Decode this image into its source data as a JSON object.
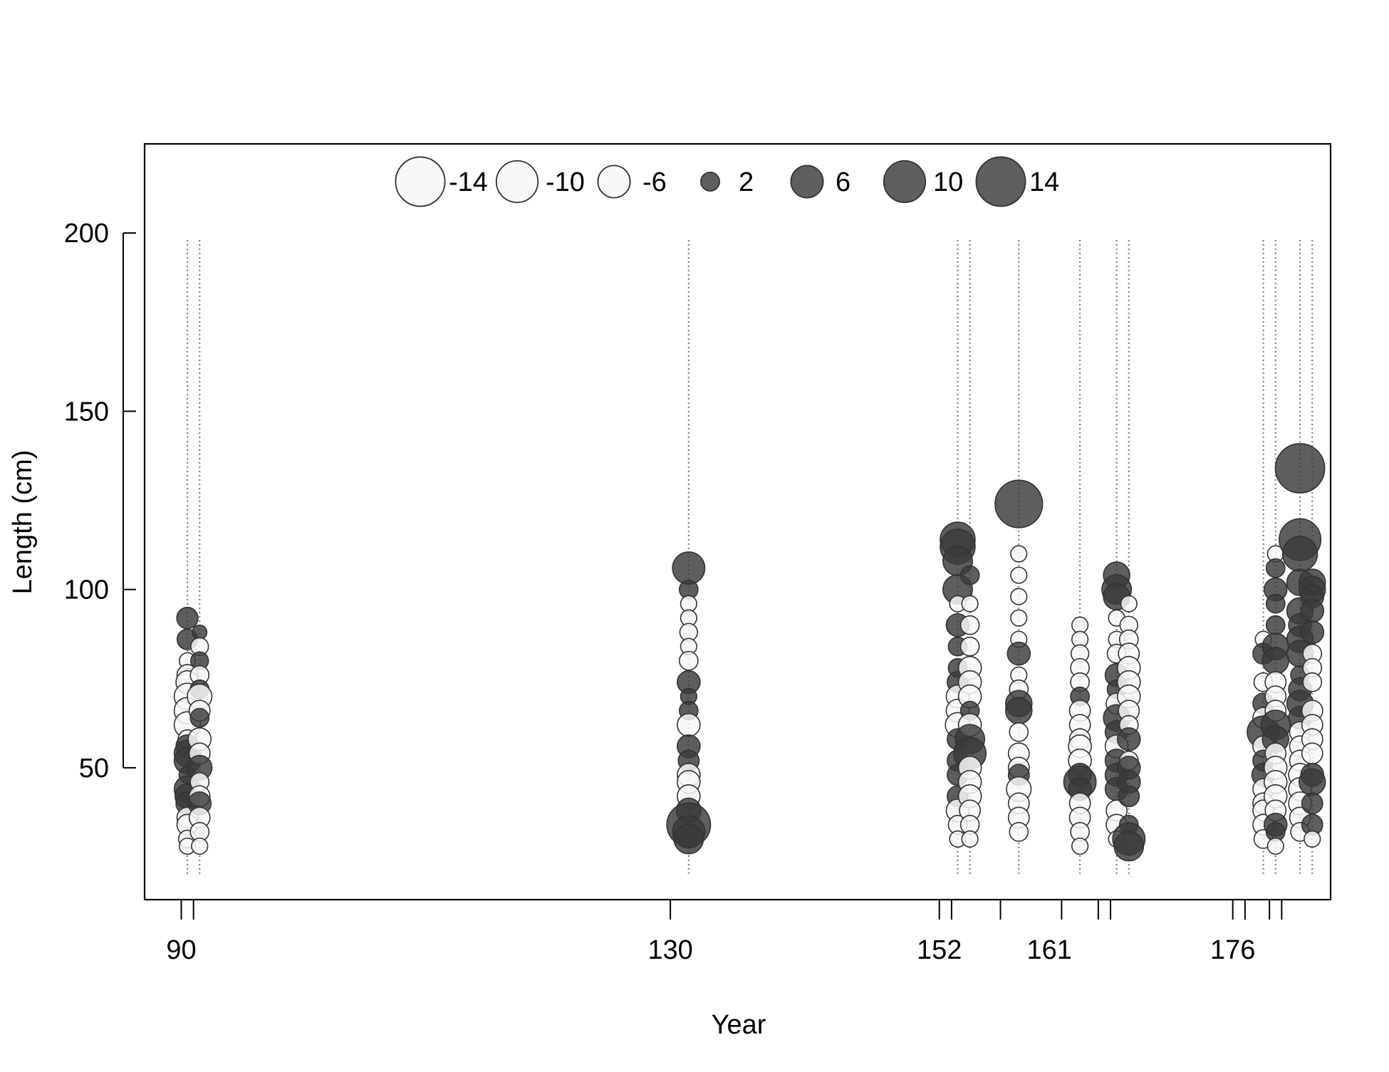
{
  "chart_data": {
    "type": "scatter",
    "subtype": "bubble",
    "title": "",
    "xlabel": "Year",
    "ylabel": "Length (cm)",
    "xlim": [
      87,
      184
    ],
    "ylim": [
      13,
      225
    ],
    "y_ticks": [
      50,
      100,
      150,
      200
    ],
    "x_tick_positions": [
      90,
      91,
      130,
      152,
      153,
      157,
      162,
      165,
      166,
      176,
      177,
      179,
      180
    ],
    "x_tick_labels": [
      {
        "x": 90,
        "label": "90"
      },
      {
        "x": 130,
        "label": "130"
      },
      {
        "x": 152,
        "label": "152"
      },
      {
        "x": 161,
        "label": "161"
      },
      {
        "x": 176,
        "label": "176"
      }
    ],
    "grid": false,
    "legend_placement": "top-center",
    "legend": [
      {
        "value": -14,
        "label": "-14"
      },
      {
        "value": -10,
        "label": "-10"
      },
      {
        "value": -6,
        "label": "-6"
      },
      {
        "value": 2,
        "label": "2"
      },
      {
        "value": 6,
        "label": "6"
      },
      {
        "value": 10,
        "label": "10"
      },
      {
        "value": 14,
        "label": "14"
      }
    ],
    "colors": {
      "positive_fill": "#3a3a3a",
      "negative_fill": "#f7f7f7",
      "stroke": "#333333"
    },
    "bin_range": [
      20,
      198
    ],
    "years": [
      90.5,
      91.5,
      131.5,
      153.5,
      154.5,
      158.5,
      163.5,
      166.5,
      167.5,
      178.5,
      179.5,
      181.5,
      182.5
    ],
    "points": [
      {
        "x": 90.5,
        "y": 92,
        "v": 2.6
      },
      {
        "x": 90.5,
        "y": 86,
        "v": 2.4
      },
      {
        "x": 90.5,
        "y": 80,
        "v": -1.5
      },
      {
        "x": 90.5,
        "y": 76,
        "v": -2.5
      },
      {
        "x": 90.5,
        "y": 74,
        "v": -3
      },
      {
        "x": 90.5,
        "y": 70,
        "v": -4
      },
      {
        "x": 90.5,
        "y": 66,
        "v": -4
      },
      {
        "x": 90.5,
        "y": 62,
        "v": -4
      },
      {
        "x": 90.5,
        "y": 58,
        "v": -2
      },
      {
        "x": 90.5,
        "y": 56,
        "v": 3
      },
      {
        "x": 90.5,
        "y": 54,
        "v": 4
      },
      {
        "x": 90.5,
        "y": 52,
        "v": 4
      },
      {
        "x": 90.5,
        "y": 48,
        "v": 1.6
      },
      {
        "x": 90.5,
        "y": 44,
        "v": 4
      },
      {
        "x": 90.5,
        "y": 42,
        "v": 3.5
      },
      {
        "x": 90.5,
        "y": 40,
        "v": 3
      },
      {
        "x": 90.5,
        "y": 36,
        "v": -2.5
      },
      {
        "x": 90.5,
        "y": 34,
        "v": -2.5
      },
      {
        "x": 90.5,
        "y": 30,
        "v": -1.8
      },
      {
        "x": 90.5,
        "y": 28,
        "v": -1.5
      },
      {
        "x": 91.5,
        "y": 88,
        "v": 1.2
      },
      {
        "x": 91.5,
        "y": 84,
        "v": -1.8
      },
      {
        "x": 91.5,
        "y": 80,
        "v": 1.8
      },
      {
        "x": 91.5,
        "y": 76,
        "v": -2
      },
      {
        "x": 91.5,
        "y": 72,
        "v": 2
      },
      {
        "x": 91.5,
        "y": 70,
        "v": -3.5
      },
      {
        "x": 91.5,
        "y": 66,
        "v": -2.5
      },
      {
        "x": 91.5,
        "y": 64,
        "v": 2
      },
      {
        "x": 91.5,
        "y": 58,
        "v": -3
      },
      {
        "x": 91.5,
        "y": 54,
        "v": -2.5
      },
      {
        "x": 91.5,
        "y": 50,
        "v": 3.5
      },
      {
        "x": 91.5,
        "y": 46,
        "v": -2
      },
      {
        "x": 91.5,
        "y": 42,
        "v": -2.5
      },
      {
        "x": 91.5,
        "y": 40,
        "v": 3
      },
      {
        "x": 91.5,
        "y": 36,
        "v": -2.5
      },
      {
        "x": 91.5,
        "y": 32,
        "v": -2
      },
      {
        "x": 91.5,
        "y": 28,
        "v": -1.5
      },
      {
        "x": 131.5,
        "y": 106,
        "v": 6
      },
      {
        "x": 131.5,
        "y": 100,
        "v": 2
      },
      {
        "x": 131.5,
        "y": 96,
        "v": -1.5
      },
      {
        "x": 131.5,
        "y": 92,
        "v": -1.5
      },
      {
        "x": 131.5,
        "y": 88,
        "v": -1.8
      },
      {
        "x": 131.5,
        "y": 84,
        "v": -1.5
      },
      {
        "x": 131.5,
        "y": 80,
        "v": -2
      },
      {
        "x": 131.5,
        "y": 74,
        "v": 3
      },
      {
        "x": 131.5,
        "y": 70,
        "v": 1.5
      },
      {
        "x": 131.5,
        "y": 66,
        "v": 2
      },
      {
        "x": 131.5,
        "y": 62,
        "v": -3
      },
      {
        "x": 131.5,
        "y": 56,
        "v": 3
      },
      {
        "x": 131.5,
        "y": 52,
        "v": 2.5
      },
      {
        "x": 131.5,
        "y": 48,
        "v": -3
      },
      {
        "x": 131.5,
        "y": 46,
        "v": -3
      },
      {
        "x": 131.5,
        "y": 42,
        "v": -3
      },
      {
        "x": 131.5,
        "y": 38,
        "v": 3.5
      },
      {
        "x": 131.5,
        "y": 34,
        "v": 11
      },
      {
        "x": 131.5,
        "y": 32,
        "v": 6
      },
      {
        "x": 131.5,
        "y": 30,
        "v": 5
      },
      {
        "x": 153.5,
        "y": 114,
        "v": 7
      },
      {
        "x": 153.5,
        "y": 112,
        "v": 7
      },
      {
        "x": 153.5,
        "y": 108,
        "v": 5
      },
      {
        "x": 153.5,
        "y": 100,
        "v": 5
      },
      {
        "x": 153.5,
        "y": 96,
        "v": -1.5
      },
      {
        "x": 153.5,
        "y": 90,
        "v": 3
      },
      {
        "x": 153.5,
        "y": 84,
        "v": 2
      },
      {
        "x": 153.5,
        "y": 78,
        "v": 2
      },
      {
        "x": 153.5,
        "y": 74,
        "v": 2.5
      },
      {
        "x": 153.5,
        "y": 70,
        "v": -3
      },
      {
        "x": 153.5,
        "y": 66,
        "v": -3
      },
      {
        "x": 153.5,
        "y": 62,
        "v": -3.5
      },
      {
        "x": 153.5,
        "y": 58,
        "v": 2.5
      },
      {
        "x": 153.5,
        "y": 52,
        "v": 2.5
      },
      {
        "x": 153.5,
        "y": 48,
        "v": 2.5
      },
      {
        "x": 153.5,
        "y": 42,
        "v": 2.5
      },
      {
        "x": 153.5,
        "y": 38,
        "v": -3
      },
      {
        "x": 153.5,
        "y": 34,
        "v": -2
      },
      {
        "x": 153.5,
        "y": 30,
        "v": -1.5
      },
      {
        "x": 154.5,
        "y": 104,
        "v": 2
      },
      {
        "x": 154.5,
        "y": 96,
        "v": -1.5
      },
      {
        "x": 154.5,
        "y": 90,
        "v": -2
      },
      {
        "x": 154.5,
        "y": 84,
        "v": -2
      },
      {
        "x": 154.5,
        "y": 78,
        "v": -3
      },
      {
        "x": 154.5,
        "y": 74,
        "v": -3
      },
      {
        "x": 154.5,
        "y": 70,
        "v": -3
      },
      {
        "x": 154.5,
        "y": 66,
        "v": 2
      },
      {
        "x": 154.5,
        "y": 62,
        "v": -3
      },
      {
        "x": 154.5,
        "y": 58,
        "v": 5
      },
      {
        "x": 154.5,
        "y": 54,
        "v": 6
      },
      {
        "x": 154.5,
        "y": 50,
        "v": -3
      },
      {
        "x": 154.5,
        "y": 46,
        "v": -3
      },
      {
        "x": 154.5,
        "y": 42,
        "v": -3
      },
      {
        "x": 154.5,
        "y": 38,
        "v": -2.5
      },
      {
        "x": 154.5,
        "y": 34,
        "v": -2
      },
      {
        "x": 154.5,
        "y": 30,
        "v": -1.5
      },
      {
        "x": 158.5,
        "y": 124,
        "v": 13
      },
      {
        "x": 158.5,
        "y": 110,
        "v": -1.5
      },
      {
        "x": 158.5,
        "y": 104,
        "v": -1.5
      },
      {
        "x": 158.5,
        "y": 98,
        "v": -1.5
      },
      {
        "x": 158.5,
        "y": 92,
        "v": -1.5
      },
      {
        "x": 158.5,
        "y": 86,
        "v": -1.5
      },
      {
        "x": 158.5,
        "y": 82,
        "v": 3
      },
      {
        "x": 158.5,
        "y": 76,
        "v": -1.5
      },
      {
        "x": 158.5,
        "y": 72,
        "v": -2
      },
      {
        "x": 158.5,
        "y": 68,
        "v": 4
      },
      {
        "x": 158.5,
        "y": 66,
        "v": 4
      },
      {
        "x": 158.5,
        "y": 60,
        "v": -2
      },
      {
        "x": 158.5,
        "y": 54,
        "v": -2.5
      },
      {
        "x": 158.5,
        "y": 50,
        "v": -2.5
      },
      {
        "x": 158.5,
        "y": 48,
        "v": 2.5
      },
      {
        "x": 158.5,
        "y": 44,
        "v": -3.5
      },
      {
        "x": 158.5,
        "y": 40,
        "v": -2.5
      },
      {
        "x": 158.5,
        "y": 36,
        "v": -2.5
      },
      {
        "x": 158.5,
        "y": 32,
        "v": -2
      },
      {
        "x": 163.5,
        "y": 90,
        "v": -1.5
      },
      {
        "x": 163.5,
        "y": 86,
        "v": -1.5
      },
      {
        "x": 163.5,
        "y": 82,
        "v": -1.8
      },
      {
        "x": 163.5,
        "y": 78,
        "v": -2
      },
      {
        "x": 163.5,
        "y": 74,
        "v": -2
      },
      {
        "x": 163.5,
        "y": 70,
        "v": 2
      },
      {
        "x": 163.5,
        "y": 66,
        "v": -2.5
      },
      {
        "x": 163.5,
        "y": 62,
        "v": -2.5
      },
      {
        "x": 163.5,
        "y": 58,
        "v": -2.5
      },
      {
        "x": 163.5,
        "y": 56,
        "v": -3
      },
      {
        "x": 163.5,
        "y": 52,
        "v": -3
      },
      {
        "x": 163.5,
        "y": 48,
        "v": 3
      },
      {
        "x": 163.5,
        "y": 46,
        "v": 6
      },
      {
        "x": 163.5,
        "y": 44,
        "v": 3
      },
      {
        "x": 163.5,
        "y": 40,
        "v": -2.5
      },
      {
        "x": 163.5,
        "y": 36,
        "v": -2.5
      },
      {
        "x": 163.5,
        "y": 32,
        "v": -2
      },
      {
        "x": 163.5,
        "y": 28,
        "v": -1.5
      },
      {
        "x": 166.5,
        "y": 104,
        "v": 4
      },
      {
        "x": 166.5,
        "y": 100,
        "v": 5
      },
      {
        "x": 166.5,
        "y": 98,
        "v": 4
      },
      {
        "x": 166.5,
        "y": 92,
        "v": -1.5
      },
      {
        "x": 166.5,
        "y": 86,
        "v": -1.5
      },
      {
        "x": 166.5,
        "y": 82,
        "v": -2
      },
      {
        "x": 166.5,
        "y": 76,
        "v": 3
      },
      {
        "x": 166.5,
        "y": 72,
        "v": 2
      },
      {
        "x": 166.5,
        "y": 68,
        "v": -2.5
      },
      {
        "x": 166.5,
        "y": 64,
        "v": 4
      },
      {
        "x": 166.5,
        "y": 60,
        "v": 3
      },
      {
        "x": 166.5,
        "y": 56,
        "v": -3
      },
      {
        "x": 166.5,
        "y": 52,
        "v": 3
      },
      {
        "x": 166.5,
        "y": 48,
        "v": 3
      },
      {
        "x": 166.5,
        "y": 44,
        "v": 3
      },
      {
        "x": 166.5,
        "y": 38,
        "v": -2.5
      },
      {
        "x": 166.5,
        "y": 34,
        "v": -2.5
      },
      {
        "x": 166.5,
        "y": 30,
        "v": -1.5
      },
      {
        "x": 167.5,
        "y": 96,
        "v": -1.5
      },
      {
        "x": 167.5,
        "y": 90,
        "v": -1.8
      },
      {
        "x": 167.5,
        "y": 86,
        "v": -2
      },
      {
        "x": 167.5,
        "y": 82,
        "v": -2.5
      },
      {
        "x": 167.5,
        "y": 78,
        "v": -3
      },
      {
        "x": 167.5,
        "y": 74,
        "v": -3
      },
      {
        "x": 167.5,
        "y": 70,
        "v": -3
      },
      {
        "x": 167.5,
        "y": 66,
        "v": -2.5
      },
      {
        "x": 167.5,
        "y": 62,
        "v": -2
      },
      {
        "x": 167.5,
        "y": 58,
        "v": 3
      },
      {
        "x": 167.5,
        "y": 52,
        "v": -2
      },
      {
        "x": 167.5,
        "y": 50,
        "v": 3
      },
      {
        "x": 167.5,
        "y": 46,
        "v": 3
      },
      {
        "x": 167.5,
        "y": 42,
        "v": 2.5
      },
      {
        "x": 167.5,
        "y": 34,
        "v": 2
      },
      {
        "x": 167.5,
        "y": 30,
        "v": 6
      },
      {
        "x": 167.5,
        "y": 28,
        "v": 5
      },
      {
        "x": 178.5,
        "y": 86,
        "v": -1.5
      },
      {
        "x": 178.5,
        "y": 82,
        "v": 2.5
      },
      {
        "x": 178.5,
        "y": 74,
        "v": -2
      },
      {
        "x": 178.5,
        "y": 68,
        "v": 2.5
      },
      {
        "x": 178.5,
        "y": 64,
        "v": -2.5
      },
      {
        "x": 178.5,
        "y": 60,
        "v": 6
      },
      {
        "x": 178.5,
        "y": 56,
        "v": -2.5
      },
      {
        "x": 178.5,
        "y": 52,
        "v": 2.5
      },
      {
        "x": 178.5,
        "y": 48,
        "v": 3
      },
      {
        "x": 178.5,
        "y": 44,
        "v": -2.5
      },
      {
        "x": 178.5,
        "y": 40,
        "v": -2.5
      },
      {
        "x": 178.5,
        "y": 38,
        "v": -2.5
      },
      {
        "x": 178.5,
        "y": 34,
        "v": -2.5
      },
      {
        "x": 178.5,
        "y": 30,
        "v": -2
      },
      {
        "x": 179.5,
        "y": 110,
        "v": -1.5
      },
      {
        "x": 179.5,
        "y": 106,
        "v": 2
      },
      {
        "x": 179.5,
        "y": 100,
        "v": 3
      },
      {
        "x": 179.5,
        "y": 96,
        "v": 2
      },
      {
        "x": 179.5,
        "y": 90,
        "v": 2
      },
      {
        "x": 179.5,
        "y": 84,
        "v": 4
      },
      {
        "x": 179.5,
        "y": 80,
        "v": 4
      },
      {
        "x": 179.5,
        "y": 74,
        "v": -2.5
      },
      {
        "x": 179.5,
        "y": 70,
        "v": -2.5
      },
      {
        "x": 179.5,
        "y": 66,
        "v": -2.5
      },
      {
        "x": 179.5,
        "y": 62,
        "v": 5
      },
      {
        "x": 179.5,
        "y": 58,
        "v": 4
      },
      {
        "x": 179.5,
        "y": 54,
        "v": -2.5
      },
      {
        "x": 179.5,
        "y": 50,
        "v": -3
      },
      {
        "x": 179.5,
        "y": 46,
        "v": -3
      },
      {
        "x": 179.5,
        "y": 42,
        "v": -3
      },
      {
        "x": 179.5,
        "y": 38,
        "v": -2.5
      },
      {
        "x": 179.5,
        "y": 34,
        "v": 3
      },
      {
        "x": 179.5,
        "y": 32,
        "v": 2
      },
      {
        "x": 179.5,
        "y": 28,
        "v": -1.5
      },
      {
        "x": 181.5,
        "y": 134,
        "v": 14
      },
      {
        "x": 181.5,
        "y": 114,
        "v": 10
      },
      {
        "x": 181.5,
        "y": 110,
        "v": 7
      },
      {
        "x": 181.5,
        "y": 102,
        "v": 4
      },
      {
        "x": 181.5,
        "y": 94,
        "v": 4
      },
      {
        "x": 181.5,
        "y": 90,
        "v": 3
      },
      {
        "x": 181.5,
        "y": 86,
        "v": 4
      },
      {
        "x": 181.5,
        "y": 82,
        "v": 4
      },
      {
        "x": 181.5,
        "y": 76,
        "v": 2
      },
      {
        "x": 181.5,
        "y": 72,
        "v": 3
      },
      {
        "x": 181.5,
        "y": 68,
        "v": 4
      },
      {
        "x": 181.5,
        "y": 64,
        "v": 3
      },
      {
        "x": 181.5,
        "y": 60,
        "v": -2.5
      },
      {
        "x": 181.5,
        "y": 56,
        "v": -2.5
      },
      {
        "x": 181.5,
        "y": 52,
        "v": -2.5
      },
      {
        "x": 181.5,
        "y": 48,
        "v": -3
      },
      {
        "x": 181.5,
        "y": 44,
        "v": -3
      },
      {
        "x": 181.5,
        "y": 40,
        "v": -3
      },
      {
        "x": 181.5,
        "y": 36,
        "v": -2.5
      },
      {
        "x": 181.5,
        "y": 32,
        "v": -2
      },
      {
        "x": 182.5,
        "y": 102,
        "v": 4
      },
      {
        "x": 182.5,
        "y": 100,
        "v": 4
      },
      {
        "x": 182.5,
        "y": 98,
        "v": 3
      },
      {
        "x": 182.5,
        "y": 94,
        "v": 3
      },
      {
        "x": 182.5,
        "y": 88,
        "v": 3
      },
      {
        "x": 182.5,
        "y": 82,
        "v": -2
      },
      {
        "x": 182.5,
        "y": 78,
        "v": -2
      },
      {
        "x": 182.5,
        "y": 74,
        "v": -2
      },
      {
        "x": 182.5,
        "y": 66,
        "v": -2.5
      },
      {
        "x": 182.5,
        "y": 62,
        "v": -2.5
      },
      {
        "x": 182.5,
        "y": 58,
        "v": -2.5
      },
      {
        "x": 182.5,
        "y": 54,
        "v": -2.5
      },
      {
        "x": 182.5,
        "y": 48,
        "v": 3
      },
      {
        "x": 182.5,
        "y": 46,
        "v": 4
      },
      {
        "x": 182.5,
        "y": 40,
        "v": 2.5
      },
      {
        "x": 182.5,
        "y": 34,
        "v": 2.5
      },
      {
        "x": 182.5,
        "y": 30,
        "v": -1.5
      }
    ]
  }
}
